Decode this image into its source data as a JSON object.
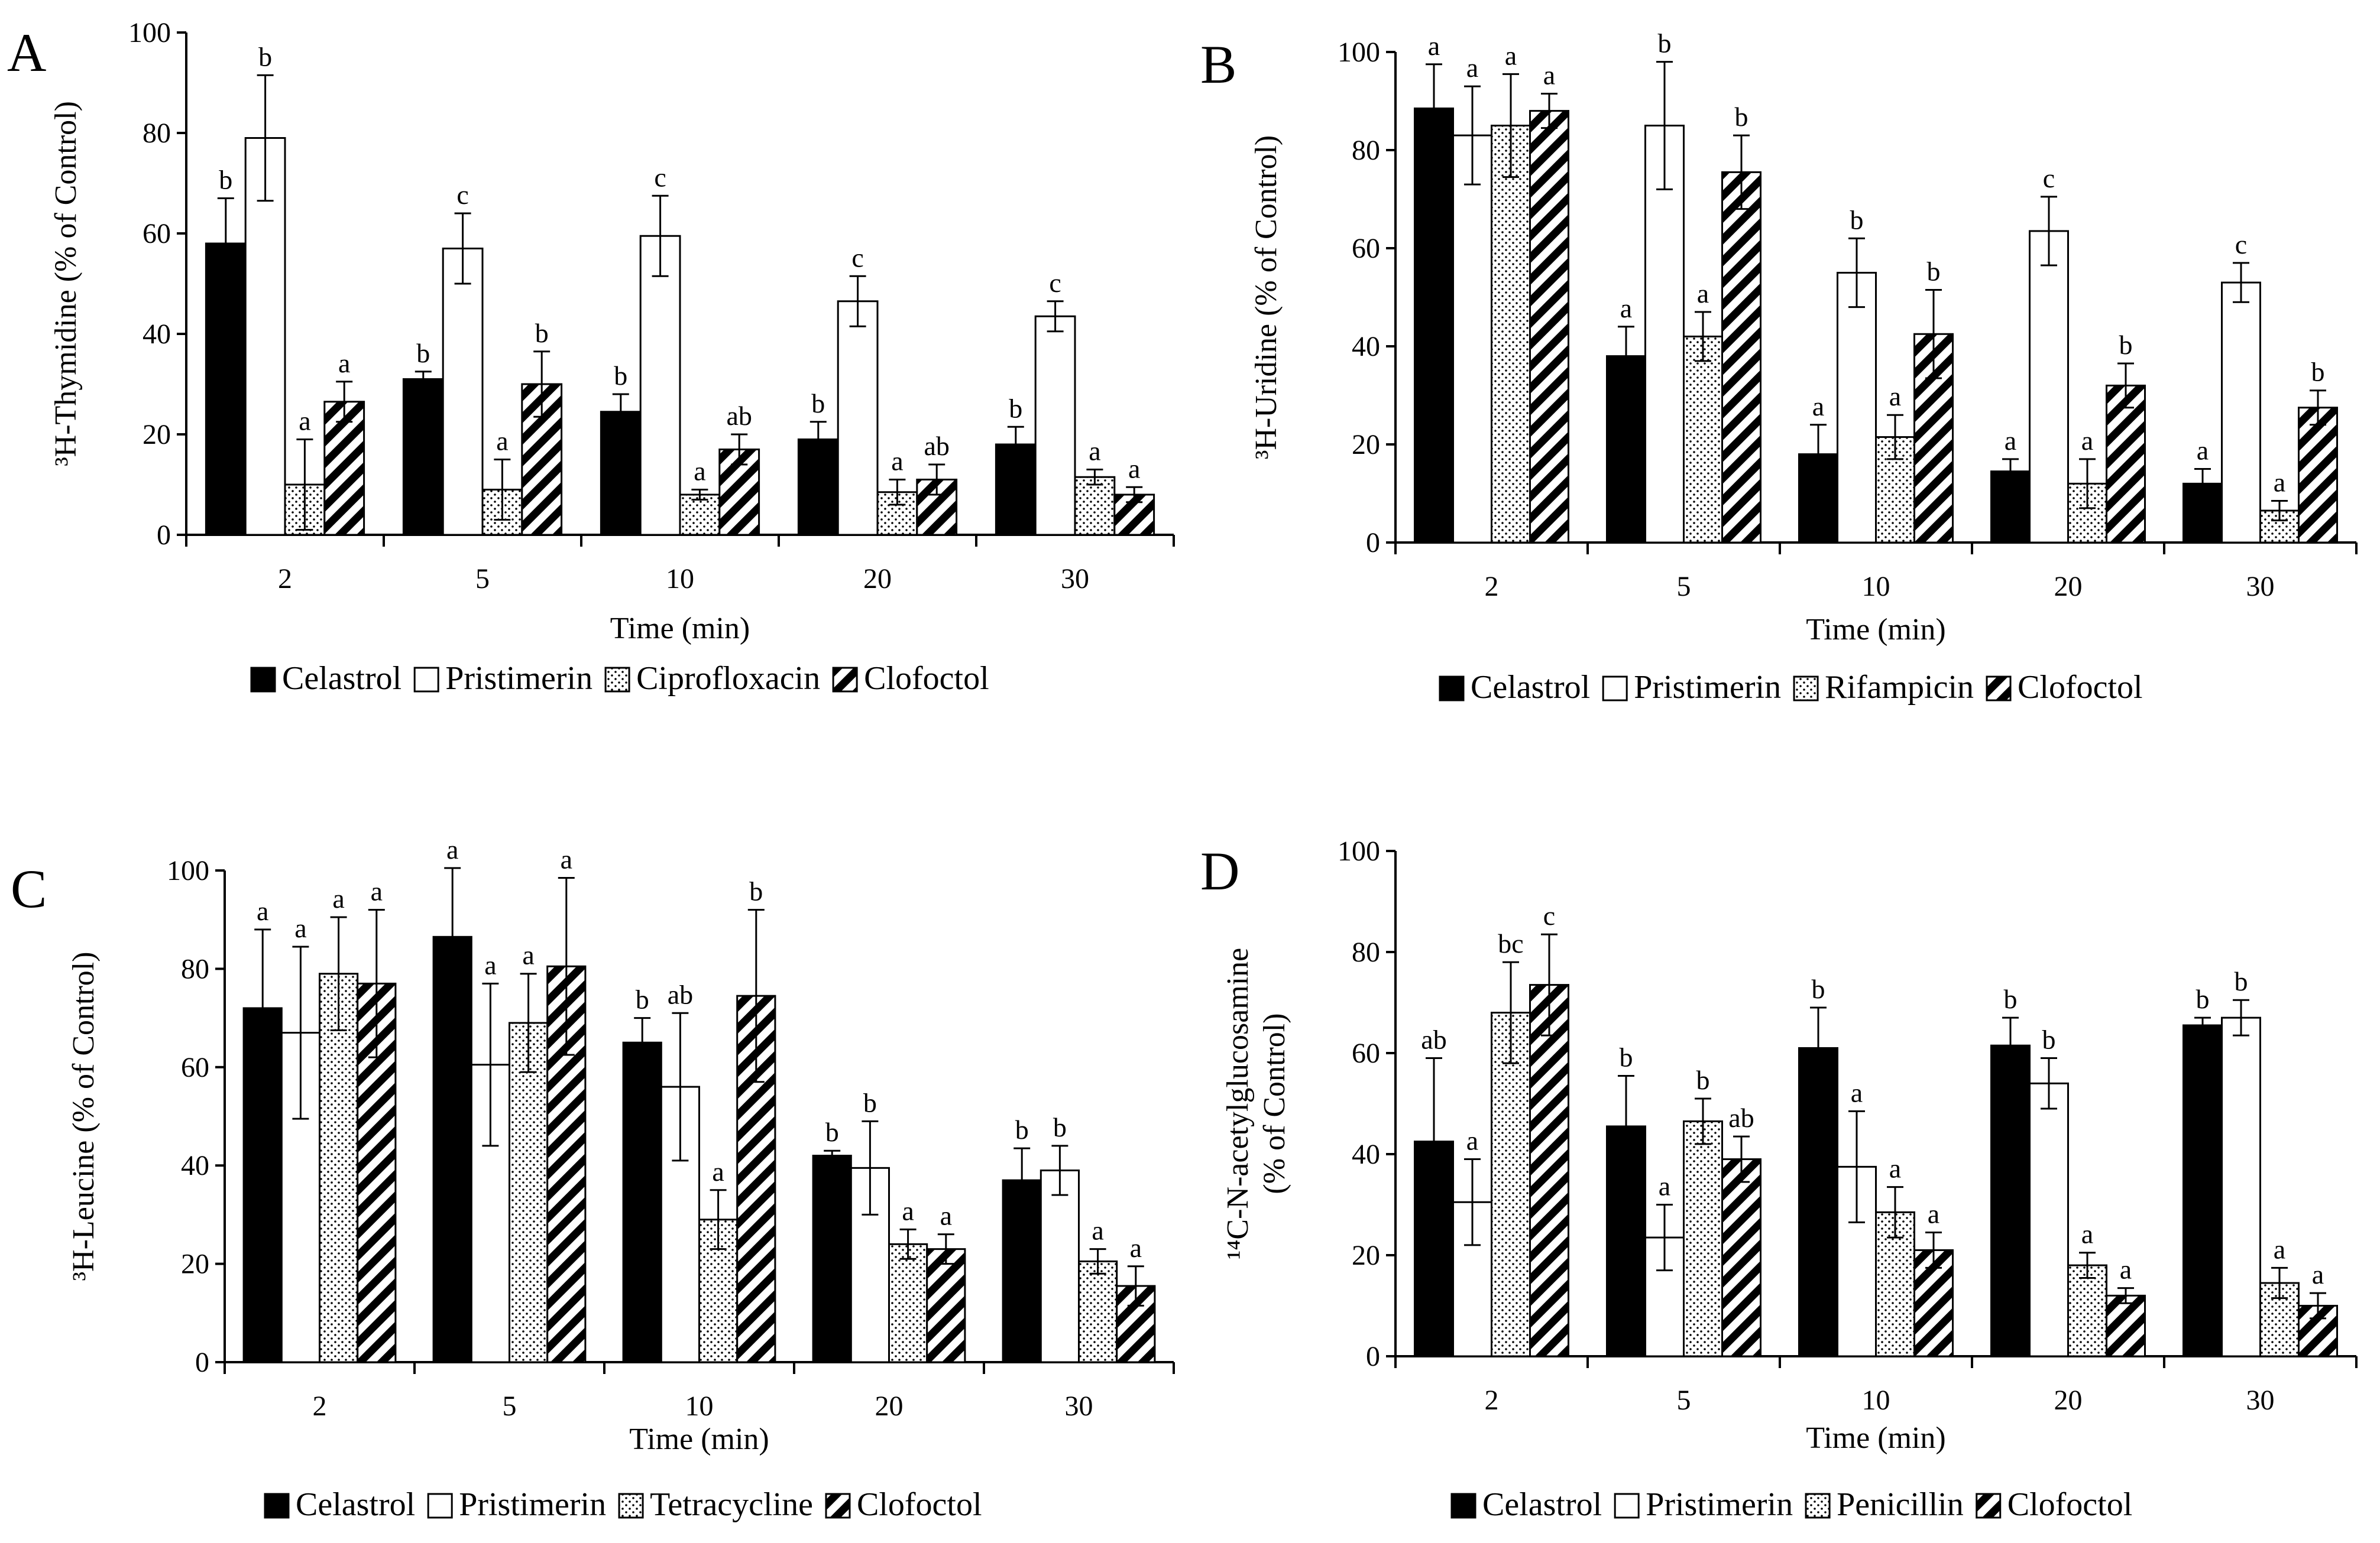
{
  "colors": {
    "celastrol": "#000000",
    "pristimerin": "#ffffff",
    "stroke": "#000000"
  },
  "chart_data": [
    {
      "panel": "A",
      "type": "bar",
      "title": "",
      "xlabel": "Time (min)",
      "ylabel": "³H-Thymidine (% of Control)",
      "ylim": [
        0,
        100
      ],
      "yticks": [
        "0",
        "20",
        "40",
        "60",
        "80",
        "100"
      ],
      "categories": [
        "2",
        "5",
        "10",
        "20",
        "30"
      ],
      "legend_position": "bottom",
      "series": [
        {
          "name": "Celastrol",
          "pattern": "solid",
          "values": [
            58,
            31,
            24.5,
            19,
            18
          ],
          "errors": [
            9,
            1.5,
            3.5,
            3.5,
            3.5
          ],
          "labels": [
            "b",
            "b",
            "b",
            "b",
            "b"
          ]
        },
        {
          "name": "Pristimerin",
          "pattern": "open",
          "values": [
            79,
            57,
            59.5,
            46.5,
            43.5
          ],
          "errors": [
            12.5,
            7,
            8,
            5,
            3
          ],
          "labels": [
            "b",
            "c",
            "c",
            "c",
            "c"
          ]
        },
        {
          "name": "Ciprofloxacin",
          "pattern": "dots",
          "values": [
            10,
            9,
            8,
            8.5,
            11.5
          ],
          "errors": [
            9,
            6,
            1,
            2.5,
            1.5
          ],
          "labels": [
            "a",
            "a",
            "a",
            "a",
            "a"
          ]
        },
        {
          "name": "Clofoctol",
          "pattern": "hatch",
          "values": [
            26.5,
            30,
            17,
            11,
            8
          ],
          "errors": [
            4,
            6.5,
            3,
            3,
            1.5
          ],
          "labels": [
            "a",
            "b",
            "ab",
            "ab",
            "a"
          ]
        }
      ]
    },
    {
      "panel": "B",
      "type": "bar",
      "title": "",
      "xlabel": "Time (min)",
      "ylabel": "³H-Uridine (% of Control)",
      "ylim": [
        0,
        100
      ],
      "yticks": [
        "0",
        "20",
        "40",
        "60",
        "80",
        "100"
      ],
      "categories": [
        "2",
        "5",
        "10",
        "20",
        "30"
      ],
      "legend_position": "bottom",
      "series": [
        {
          "name": "Celastrol",
          "pattern": "solid",
          "values": [
            88.5,
            38,
            18,
            14.5,
            12
          ],
          "errors": [
            9,
            6,
            6,
            2.5,
            3
          ],
          "labels": [
            "a",
            "a",
            "a",
            "a",
            "a"
          ]
        },
        {
          "name": "Pristimerin",
          "pattern": "open",
          "values": [
            83,
            85,
            55,
            63.5,
            53
          ],
          "errors": [
            10,
            13,
            7,
            7,
            4
          ],
          "labels": [
            "a",
            "b",
            "b",
            "c",
            "c"
          ]
        },
        {
          "name": "Rifampicin",
          "pattern": "dots",
          "values": [
            85,
            42,
            21.5,
            12,
            6.5
          ],
          "errors": [
            10.5,
            5,
            4.5,
            5,
            2
          ],
          "labels": [
            "a",
            "a",
            "a",
            "a",
            "a"
          ]
        },
        {
          "name": "Clofoctol",
          "pattern": "hatch",
          "values": [
            88,
            75.5,
            42.5,
            32,
            27.5
          ],
          "errors": [
            3.5,
            7.5,
            9,
            4.5,
            3.5
          ],
          "labels": [
            "a",
            "b",
            "b",
            "b",
            "b"
          ]
        }
      ]
    },
    {
      "panel": "C",
      "type": "bar",
      "title": "",
      "xlabel": "Time (min)",
      "ylabel": "³H-Leucine (% of Control)",
      "ylim": [
        0,
        100
      ],
      "yticks": [
        "0",
        "20",
        "40",
        "60",
        "80",
        "100"
      ],
      "categories": [
        "2",
        "5",
        "10",
        "20",
        "30"
      ],
      "legend_position": "bottom",
      "series": [
        {
          "name": "Celastrol",
          "pattern": "solid",
          "values": [
            72,
            86.5,
            65,
            42,
            37
          ],
          "errors": [
            16,
            14,
            5,
            1,
            6.5
          ],
          "labels": [
            "a",
            "a",
            "b",
            "b",
            "b"
          ]
        },
        {
          "name": "Pristimerin",
          "pattern": "open",
          "values": [
            67,
            60.5,
            56,
            39.5,
            39
          ],
          "errors": [
            17.5,
            16.5,
            15,
            9.5,
            5
          ],
          "labels": [
            "a",
            "a",
            "ab",
            "b",
            "b"
          ]
        },
        {
          "name": "Tetracycline",
          "pattern": "dots",
          "values": [
            79,
            69,
            29,
            24,
            20.5
          ],
          "errors": [
            11.5,
            10,
            6,
            3,
            2.5
          ],
          "labels": [
            "a",
            "a",
            "a",
            "a",
            "a"
          ]
        },
        {
          "name": "Clofoctol",
          "pattern": "hatch",
          "values": [
            77,
            80.5,
            74.5,
            23,
            15.5
          ],
          "errors": [
            15,
            18,
            17.5,
            3,
            4
          ],
          "labels": [
            "a",
            "a",
            "b",
            "a",
            "a"
          ]
        }
      ]
    },
    {
      "panel": "D",
      "type": "bar",
      "title": "",
      "xlabel": "Time (min)",
      "ylabel": "¹⁴C-N-acetylglucosamine",
      "ylabel2": "(% of Control)",
      "ylim": [
        0,
        100
      ],
      "yticks": [
        "0",
        "20",
        "40",
        "60",
        "80",
        "100"
      ],
      "categories": [
        "2",
        "5",
        "10",
        "20",
        "30"
      ],
      "legend_position": "bottom",
      "series": [
        {
          "name": "Celastrol",
          "pattern": "solid",
          "values": [
            42.5,
            45.5,
            61,
            61.5,
            65.5
          ],
          "errors": [
            16.5,
            10,
            8,
            5.5,
            1.5
          ],
          "labels": [
            "ab",
            "b",
            "b",
            "b",
            "b"
          ]
        },
        {
          "name": "Pristimerin",
          "pattern": "open",
          "values": [
            30.5,
            23.5,
            37.5,
            54,
            67
          ],
          "errors": [
            8.5,
            6.5,
            11,
            5,
            3.5
          ],
          "labels": [
            "a",
            "a",
            "a",
            "b",
            "b"
          ]
        },
        {
          "name": "Penicillin",
          "pattern": "dots",
          "values": [
            68,
            46.5,
            28.5,
            18,
            14.5
          ],
          "errors": [
            10,
            4.5,
            5,
            2.5,
            3
          ],
          "labels": [
            "bc",
            "b",
            "a",
            "a",
            "a"
          ]
        },
        {
          "name": "Clofoctol",
          "pattern": "hatch",
          "values": [
            73.5,
            39,
            21,
            12,
            10
          ],
          "errors": [
            10,
            4.5,
            3.5,
            1.5,
            2.5
          ],
          "labels": [
            "c",
            "ab",
            "a",
            "a",
            "a"
          ]
        }
      ]
    }
  ]
}
